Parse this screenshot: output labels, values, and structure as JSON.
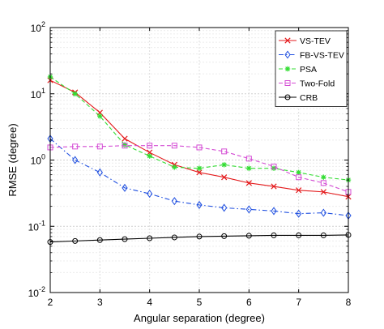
{
  "chart_data": {
    "type": "line",
    "title": "",
    "xlabel": "Angular separation (degree)",
    "ylabel": "RMSE (degree)",
    "xlim": [
      2,
      8
    ],
    "ylim": [
      0.01,
      100
    ],
    "yscale": "log",
    "grid": true,
    "legend_position": "top-right",
    "x_ticks": [
      "2",
      "3",
      "4",
      "5",
      "6",
      "7",
      "8"
    ],
    "y_ticks": [
      {
        "base": "10",
        "exp": "-2"
      },
      {
        "base": "10",
        "exp": "-1"
      },
      {
        "base": "10",
        "exp": "0"
      },
      {
        "base": "10",
        "exp": "1"
      },
      {
        "base": "10",
        "exp": "2"
      }
    ],
    "x": [
      2,
      2.5,
      3,
      3.5,
      4,
      4.5,
      5,
      5.5,
      6,
      6.5,
      7,
      7.5,
      8
    ],
    "series": [
      {
        "name": "VS-TEV",
        "color": "#e41a1c",
        "marker": "x",
        "dash": "solid",
        "values": [
          16,
          10.5,
          5.2,
          2.1,
          1.3,
          0.85,
          0.65,
          0.55,
          0.45,
          0.4,
          0.35,
          0.33,
          0.28
        ]
      },
      {
        "name": "FB-VS-TEV",
        "color": "#1f4fe0",
        "marker": "diamond",
        "dash": "dashdot",
        "values": [
          2.1,
          1.0,
          0.65,
          0.38,
          0.31,
          0.24,
          0.21,
          0.19,
          0.18,
          0.17,
          0.155,
          0.16,
          0.145
        ]
      },
      {
        "name": "PSA",
        "color": "#33dd33",
        "marker": "asterisk",
        "dash": "dashed",
        "values": [
          18,
          10,
          4.6,
          1.7,
          1.15,
          0.78,
          0.75,
          0.85,
          0.75,
          0.75,
          0.65,
          0.55,
          0.5
        ]
      },
      {
        "name": "Two-Fold",
        "color": "#d44cd4",
        "marker": "square",
        "dash": "dashed",
        "values": [
          1.55,
          1.6,
          1.6,
          1.65,
          1.65,
          1.65,
          1.55,
          1.35,
          1.05,
          0.8,
          0.55,
          0.45,
          0.33
        ]
      },
      {
        "name": "CRB",
        "color": "#000000",
        "marker": "circle",
        "dash": "solid",
        "values": [
          0.058,
          0.06,
          0.062,
          0.064,
          0.066,
          0.068,
          0.07,
          0.071,
          0.072,
          0.073,
          0.073,
          0.073,
          0.074
        ]
      }
    ]
  }
}
